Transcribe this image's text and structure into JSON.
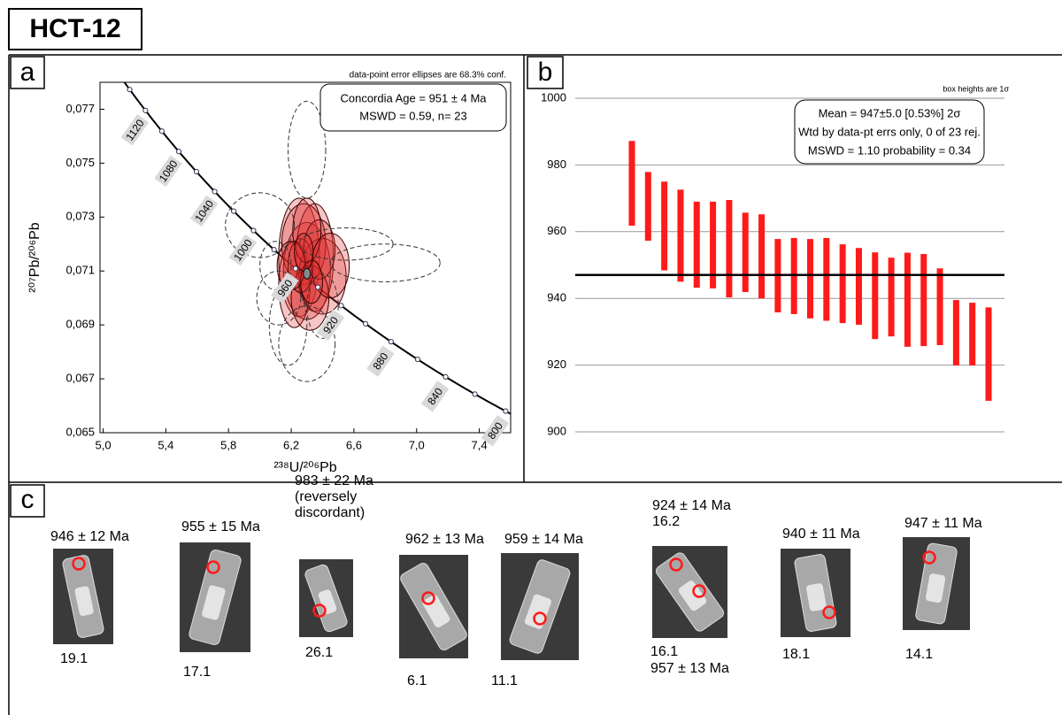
{
  "title": "HCT-12",
  "panels": [
    "a",
    "b",
    "c"
  ],
  "chart_data": [
    {
      "type": "concordia",
      "xlabel": "²³⁸U/²⁰⁶Pb",
      "ylabel": "²⁰⁷Pb/²⁰⁶Pb",
      "xlim": [
        4.98,
        7.6
      ],
      "xticks": [
        {
          "value": 5.0,
          "label": "5,0"
        },
        {
          "value": 5.4,
          "label": "5,4"
        },
        {
          "value": 5.8,
          "label": "5,8"
        },
        {
          "value": 6.2,
          "label": "6,2"
        },
        {
          "value": 6.6,
          "label": "6,6"
        },
        {
          "value": 7.0,
          "label": "7,0"
        },
        {
          "value": 7.4,
          "label": "7,4"
        }
      ],
      "ylim": [
        0.065,
        0.078
      ],
      "yticks": [
        {
          "value": 0.065,
          "label": "0,065"
        },
        {
          "value": 0.067,
          "label": "0,067"
        },
        {
          "value": 0.069,
          "label": "0,069"
        },
        {
          "value": 0.071,
          "label": "0,071"
        },
        {
          "value": 0.073,
          "label": "0,073"
        },
        {
          "value": 0.075,
          "label": "0,075"
        },
        {
          "value": 0.077,
          "label": "0,077"
        }
      ],
      "note": "data-point error ellipses are 68.3% conf.",
      "annotations": [
        "Concordia Age = 951 ± 4 Ma",
        "MSWD = 0.59,  n= 23"
      ],
      "age_ticks": [
        800,
        820,
        840,
        860,
        880,
        900,
        920,
        940,
        960,
        980,
        1000,
        1020,
        1040,
        1060,
        1080,
        1100,
        1120,
        1140
      ],
      "age_labels": [
        800,
        840,
        880,
        920,
        960,
        1000,
        1040,
        1080,
        1120
      ],
      "series": [
        {
          "color": "#e03030",
          "dashed": false,
          "x": [
            6.25,
            6.3,
            6.35,
            6.28,
            6.22,
            6.4,
            6.32,
            6.26,
            6.38,
            6.3,
            6.2,
            6.45,
            6.33,
            6.28
          ],
          "y": [
            0.0715,
            0.071,
            0.0715,
            0.072,
            0.0705,
            0.0708,
            0.07,
            0.0712,
            0.0718,
            0.0725,
            0.0712,
            0.0712,
            0.0706,
            0.0717
          ],
          "sx": [
            0.13,
            0.15,
            0.12,
            0.14,
            0.1,
            0.15,
            0.12,
            0.08,
            0.1,
            0.09,
            0.09,
            0.12,
            0.07,
            0.06
          ],
          "sy": [
            0.0022,
            0.0018,
            0.002,
            0.0015,
            0.0016,
            0.0014,
            0.0012,
            0.001,
            0.0011,
            0.0012,
            0.0009,
            0.0012,
            0.0008,
            0.0007
          ]
        },
        {
          "color": "#333333",
          "dashed": true,
          "x": [
            6.3,
            6.8,
            6.55,
            6.0,
            6.12,
            6.18,
            6.3,
            6.1,
            6.4
          ],
          "y": [
            0.0755,
            0.0713,
            0.072,
            0.0727,
            0.07,
            0.069,
            0.0683,
            0.0712,
            0.0697
          ],
          "sx": [
            0.12,
            0.35,
            0.3,
            0.22,
            0.14,
            0.12,
            0.18,
            0.1,
            0.1
          ],
          "sy": [
            0.0018,
            0.0007,
            0.0006,
            0.0012,
            0.001,
            0.0015,
            0.0014,
            0.0009,
            0.0012
          ]
        }
      ],
      "concordia_point": {
        "x": 6.3,
        "y": 0.0709
      }
    },
    {
      "type": "bar",
      "ylim": [
        900,
        1000
      ],
      "yticks": [
        900,
        920,
        940,
        960,
        980,
        1000
      ],
      "grid": true,
      "color": "#ff1a1a",
      "note": "box heights are 1σ",
      "annotations": [
        "Mean = 947±5.0  [0.53%]  2σ",
        "Wtd by data-pt errs only, 0 of 23 rej.",
        "MSWD = 1.10 probability = 0.34"
      ],
      "mean": 947,
      "values": [
        974.5,
        967.6,
        961.7,
        958.8,
        956.1,
        956.0,
        954.9,
        953.8,
        952.6,
        946.8,
        946.7,
        945.9,
        945.7,
        944.4,
        943.6,
        940.8,
        940.4,
        939.6,
        939.5,
        937.5,
        929.7,
        929.3,
        923.3
      ],
      "errors": [
        12.7,
        10.3,
        13.3,
        13.8,
        12.9,
        13.0,
        14.6,
        11.9,
        12.6,
        11.0,
        11.4,
        11.9,
        12.4,
        11.8,
        11.5,
        13.0,
        11.8,
        14.1,
        13.8,
        11.5,
        9.8,
        9.4,
        14.0
      ]
    }
  ],
  "grains": [
    {
      "above": [
        "946 ± 12 Ma"
      ],
      "below": [
        "19.1"
      ]
    },
    {
      "above": [
        "955 ± 15 Ma"
      ],
      "below": [
        "17.1"
      ]
    },
    {
      "above": [
        "983 ± 22 Ma",
        "(reversely",
        "discordant)"
      ],
      "below": [
        "26.1"
      ]
    },
    {
      "above": [
        "962 ±  13 Ma"
      ],
      "below": [
        "6.1"
      ]
    },
    {
      "above": [
        "959 ± 14 Ma"
      ],
      "below": [
        "11.1"
      ]
    },
    {
      "above": [
        "924 ±  14 Ma",
        "16.2"
      ],
      "below": [
        "16.1",
        "957 ± 13 Ma"
      ]
    },
    {
      "above": [
        "940 ± 11 Ma"
      ],
      "below": [
        "18.1"
      ]
    },
    {
      "above": [
        "947 ± 11 Ma"
      ],
      "below": [
        "14.1"
      ]
    }
  ]
}
